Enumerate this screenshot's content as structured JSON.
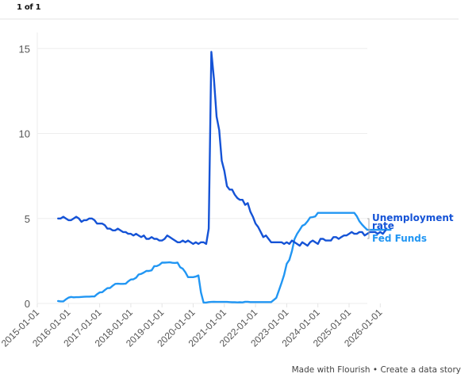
{
  "header": {
    "pager": "1 of 1"
  },
  "footer": {
    "made_with": "Made with Flourish",
    "bullet": " • ",
    "create": "Create a data story"
  },
  "colors": {
    "unemployment": "#1553d6",
    "fed_funds": "#2196f3",
    "grid": "#eeeeee",
    "axis_text": "#555555"
  },
  "chart_data": {
    "type": "line",
    "title": "",
    "xlabel": "",
    "ylabel": "",
    "ylim": [
      0,
      16
    ],
    "yticks": [
      0,
      5,
      10,
      15
    ],
    "xticks": [
      "2015-01-01",
      "2016-01-01",
      "2017-01-01",
      "2018-01-01",
      "2019-01-01",
      "2020-01-01",
      "2021-01-01",
      "2022-01-01",
      "2023-01-01",
      "2024-01-01",
      "2025-01-01",
      "2026-01-01"
    ],
    "x_start": "2015-09-01",
    "x_frequency": "monthly",
    "legend_position": "line-end labels (right)",
    "series": [
      {
        "name": "Unemployment rate",
        "label_lines": [
          "Unemployment",
          "rate"
        ],
        "color": "#1553d6",
        "values": [
          5.0,
          5.0,
          5.1,
          5.0,
          4.9,
          4.9,
          5.0,
          5.1,
          5.0,
          4.8,
          4.9,
          4.9,
          5.0,
          5.0,
          4.9,
          4.7,
          4.7,
          4.7,
          4.6,
          4.4,
          4.4,
          4.3,
          4.3,
          4.4,
          4.3,
          4.2,
          4.2,
          4.1,
          4.1,
          4.0,
          4.1,
          4.0,
          3.9,
          4.0,
          3.8,
          3.8,
          3.9,
          3.8,
          3.8,
          3.7,
          3.7,
          3.8,
          4.0,
          3.9,
          3.8,
          3.7,
          3.6,
          3.6,
          3.7,
          3.6,
          3.7,
          3.6,
          3.5,
          3.6,
          3.5,
          3.6,
          3.6,
          3.5,
          4.4,
          14.8,
          13.2,
          11.0,
          10.2,
          8.4,
          7.8,
          6.9,
          6.7,
          6.7,
          6.4,
          6.2,
          6.1,
          6.1,
          5.8,
          5.9,
          5.4,
          5.1,
          4.7,
          4.5,
          4.2,
          3.9,
          4.0,
          3.8,
          3.6,
          3.6,
          3.6,
          3.6,
          3.6,
          3.5,
          3.6,
          3.5,
          3.7,
          3.6,
          3.5,
          3.4,
          3.6,
          3.5,
          3.4,
          3.6,
          3.7,
          3.6,
          3.5,
          3.8,
          3.8,
          3.7,
          3.7,
          3.7,
          3.9,
          3.9,
          3.8,
          3.9,
          4.0,
          4.0,
          4.1,
          4.2,
          4.1,
          4.1,
          4.2,
          4.2,
          4.0,
          4.1,
          4.2,
          4.2,
          4.2,
          4.1,
          4.2,
          4.1,
          4.3
        ]
      },
      {
        "name": "Fed Funds",
        "label_lines": [
          "Fed Funds"
        ],
        "color": "#2196f3",
        "values": [
          0.14,
          0.12,
          0.12,
          0.24,
          0.34,
          0.38,
          0.36,
          0.37,
          0.37,
          0.38,
          0.39,
          0.4,
          0.4,
          0.41,
          0.41,
          0.54,
          0.65,
          0.66,
          0.79,
          0.9,
          0.91,
          1.04,
          1.15,
          1.16,
          1.15,
          1.15,
          1.16,
          1.3,
          1.41,
          1.42,
          1.51,
          1.7,
          1.74,
          1.82,
          1.91,
          1.91,
          1.95,
          2.19,
          2.2,
          2.27,
          2.4,
          2.4,
          2.41,
          2.42,
          2.39,
          2.38,
          2.4,
          2.13,
          2.04,
          1.83,
          1.55,
          1.55,
          1.55,
          1.58,
          1.65,
          0.65,
          0.05,
          0.05,
          0.08,
          0.09,
          0.1,
          0.09,
          0.09,
          0.09,
          0.09,
          0.09,
          0.08,
          0.07,
          0.07,
          0.06,
          0.07,
          0.06,
          0.1,
          0.1,
          0.08,
          0.08,
          0.08,
          0.08,
          0.08,
          0.08,
          0.08,
          0.08,
          0.08,
          0.2,
          0.33,
          0.77,
          1.21,
          1.68,
          2.33,
          2.56,
          3.08,
          3.78,
          4.1,
          4.33,
          4.57,
          4.65,
          4.83,
          5.06,
          5.08,
          5.12,
          5.33,
          5.33,
          5.33,
          5.33,
          5.33,
          5.33,
          5.33,
          5.33,
          5.33,
          5.33,
          5.33,
          5.33,
          5.33,
          5.33,
          5.33,
          5.13,
          4.83,
          4.64,
          4.48,
          4.33,
          4.33,
          4.33,
          4.33,
          4.33,
          4.33,
          4.33,
          4.33,
          4.33,
          4.33
        ]
      }
    ]
  }
}
